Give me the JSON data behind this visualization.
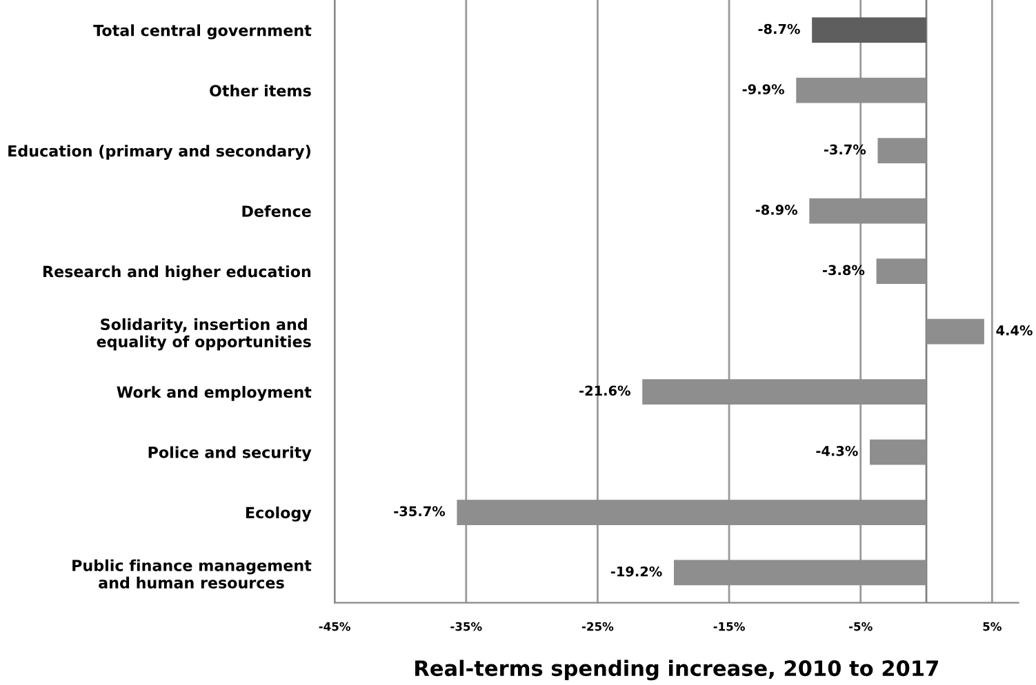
{
  "chart_data": {
    "type": "bar",
    "orientation": "horizontal",
    "xlabel": "Real-terms spending increase, 2010 to 2017",
    "categories": [
      "Total central government",
      "Other items",
      "Education (primary and secondary)",
      "Defence",
      "Research and higher education",
      "Solidarity, insertion and\nequality of opportunities",
      "Work and employment",
      "Police and security",
      "Ecology",
      "Public finance management\nand human resources"
    ],
    "values": [
      -8.7,
      -9.9,
      -3.7,
      -8.9,
      -3.8,
      4.4,
      -21.6,
      -4.3,
      -35.7,
      -19.2
    ],
    "colors": [
      "#5e5e5e",
      "#8e8e8e",
      "#8e8e8e",
      "#8e8e8e",
      "#8e8e8e",
      "#8e8e8e",
      "#8e8e8e",
      "#8e8e8e",
      "#8e8e8e",
      "#8e8e8e"
    ],
    "value_labels": [
      "-8.7%",
      "-9.9%",
      "-3.7%",
      "-8.9%",
      "-3.8%",
      "4.4%",
      "-21.6%",
      "-4.3%",
      "-35.7%",
      "-19.2%"
    ],
    "xlim": [
      -45,
      7
    ],
    "xticks": [
      {
        "value": -45,
        "label": "-45%"
      },
      {
        "value": -35,
        "label": "-35%"
      },
      {
        "value": -25,
        "label": "-25%"
      },
      {
        "value": -15,
        "label": "-15%"
      },
      {
        "value": -5,
        "label": "-5%"
      },
      {
        "value": 5,
        "label": "5%"
      }
    ],
    "ref_lines": [
      {
        "axis": "x",
        "value": 0,
        "color": "#7f7f7f"
      }
    ],
    "grid": "x",
    "legend": false
  }
}
